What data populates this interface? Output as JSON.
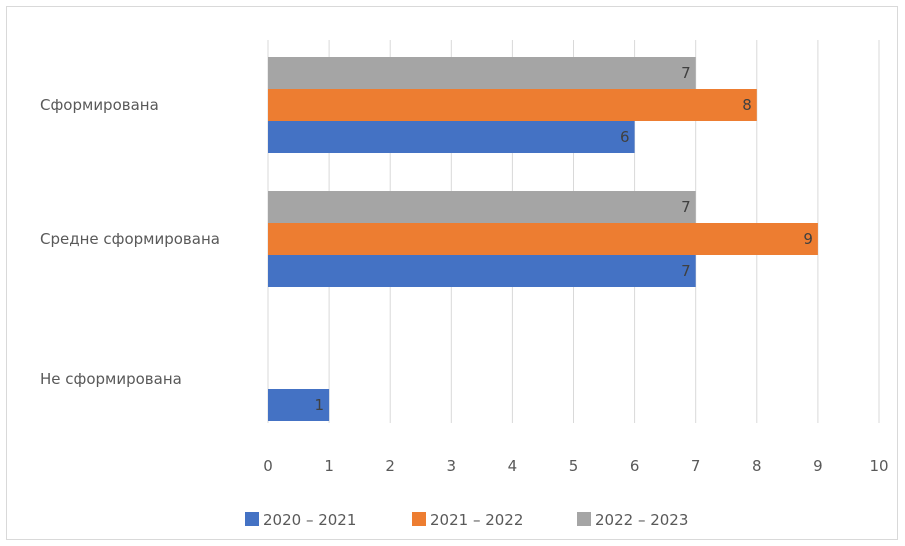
{
  "chart_data": {
    "type": "bar",
    "orientation": "horizontal",
    "categories": [
      "Сформирована",
      "Средне сформирована",
      "Не сформирована"
    ],
    "series": [
      {
        "name": "2020 – 2021",
        "color": "#4472C4",
        "values": [
          6,
          7,
          1
        ]
      },
      {
        "name": "2021 – 2022",
        "color": "#ED7D31",
        "values": [
          8,
          9,
          0
        ]
      },
      {
        "name": "2022 – 2023",
        "color": "#A5A5A5",
        "values": [
          7,
          7,
          0
        ]
      }
    ],
    "xlim": [
      0,
      10
    ],
    "xticks": [
      "0",
      "1",
      "2",
      "3",
      "4",
      "5",
      "6",
      "7",
      "8",
      "9",
      "10"
    ],
    "grid": true,
    "legend_position": "bottom",
    "data_labels": true
  }
}
